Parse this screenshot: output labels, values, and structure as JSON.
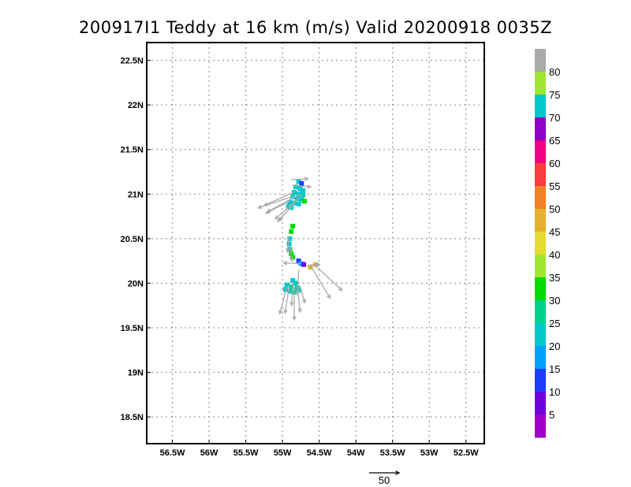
{
  "chart_data": {
    "type": "scatter",
    "title": "200917I1 Teddy at 16 km (m/s) Valid 20200918 0035Z",
    "xlim": [
      -56.85,
      -52.25
    ],
    "ylim": [
      18.2,
      22.7
    ],
    "x_ticks": [
      {
        "value": -56.5,
        "label": "56.5W"
      },
      {
        "value": -56.0,
        "label": "56W"
      },
      {
        "value": -55.5,
        "label": "55.5W"
      },
      {
        "value": -55.0,
        "label": "55W"
      },
      {
        "value": -54.5,
        "label": "54.5W"
      },
      {
        "value": -54.0,
        "label": "54W"
      },
      {
        "value": -53.5,
        "label": "53.5W"
      },
      {
        "value": -53.0,
        "label": "53W"
      },
      {
        "value": -52.5,
        "label": "52.5W"
      }
    ],
    "y_ticks": [
      {
        "value": 18.5,
        "label": "18.5N"
      },
      {
        "value": 19.0,
        "label": "19N"
      },
      {
        "value": 19.5,
        "label": "19.5N"
      },
      {
        "value": 20.0,
        "label": "20N"
      },
      {
        "value": 20.5,
        "label": "20.5N"
      },
      {
        "value": 21.0,
        "label": "21N"
      },
      {
        "value": 21.5,
        "label": "21.5N"
      },
      {
        "value": 22.0,
        "label": "22N"
      },
      {
        "value": 22.5,
        "label": "22.5N"
      }
    ],
    "grid": true,
    "colorbar": {
      "labels": [
        "5",
        "10",
        "15",
        "20",
        "25",
        "30",
        "35",
        "40",
        "45",
        "50",
        "55",
        "60",
        "65",
        "70",
        "75",
        "80"
      ],
      "colors": [
        "#a000c8",
        "#6e00dc",
        "#1e3cff",
        "#00a0ff",
        "#00c8c8",
        "#00d28c",
        "#00dc00",
        "#a0e632",
        "#e6dc32",
        "#e6af2d",
        "#f08228",
        "#fa3c3c",
        "#f00082",
        "#8c00c8",
        "#00c8c8",
        "#a0e632",
        "#aaaaaa"
      ]
    },
    "points": [
      {
        "lon": -54.78,
        "lat": 21.14,
        "v": 22
      },
      {
        "lon": -54.74,
        "lat": 21.12,
        "v": 14
      },
      {
        "lon": -54.82,
        "lat": 21.08,
        "v": 22
      },
      {
        "lon": -54.76,
        "lat": 21.06,
        "v": 21
      },
      {
        "lon": -54.72,
        "lat": 21.04,
        "v": 23
      },
      {
        "lon": -54.84,
        "lat": 21.02,
        "v": 24
      },
      {
        "lon": -54.78,
        "lat": 21.0,
        "v": 22
      },
      {
        "lon": -54.72,
        "lat": 20.99,
        "v": 21
      },
      {
        "lon": -54.86,
        "lat": 20.97,
        "v": 22
      },
      {
        "lon": -54.8,
        "lat": 20.95,
        "v": 24
      },
      {
        "lon": -54.74,
        "lat": 20.94,
        "v": 20
      },
      {
        "lon": -54.7,
        "lat": 20.92,
        "v": 32
      },
      {
        "lon": -54.9,
        "lat": 20.91,
        "v": 23
      },
      {
        "lon": -54.84,
        "lat": 20.9,
        "v": 21
      },
      {
        "lon": -54.78,
        "lat": 20.89,
        "v": 22
      },
      {
        "lon": -54.92,
        "lat": 20.86,
        "v": 22
      },
      {
        "lon": -54.88,
        "lat": 20.85,
        "v": 24
      },
      {
        "lon": -54.86,
        "lat": 20.64,
        "v": 32
      },
      {
        "lon": -54.88,
        "lat": 20.58,
        "v": 33
      },
      {
        "lon": -54.9,
        "lat": 20.5,
        "v": 24
      },
      {
        "lon": -54.91,
        "lat": 20.44,
        "v": 22
      },
      {
        "lon": -54.9,
        "lat": 20.38,
        "v": 27
      },
      {
        "lon": -54.88,
        "lat": 20.33,
        "v": 32
      },
      {
        "lon": -54.86,
        "lat": 20.29,
        "v": 34
      },
      {
        "lon": -54.78,
        "lat": 20.25,
        "v": 12
      },
      {
        "lon": -54.75,
        "lat": 20.22,
        "v": 16
      },
      {
        "lon": -54.71,
        "lat": 20.21,
        "v": 9
      },
      {
        "lon": -54.62,
        "lat": 20.18,
        "v": 48
      },
      {
        "lon": -54.55,
        "lat": 20.21,
        "v": 47
      },
      {
        "lon": -54.86,
        "lat": 20.03,
        "v": 22
      },
      {
        "lon": -54.82,
        "lat": 20.0,
        "v": 24
      },
      {
        "lon": -54.94,
        "lat": 19.98,
        "v": 23
      },
      {
        "lon": -54.88,
        "lat": 19.96,
        "v": 25
      },
      {
        "lon": -54.8,
        "lat": 19.95,
        "v": 21
      },
      {
        "lon": -54.96,
        "lat": 19.93,
        "v": 21
      },
      {
        "lon": -54.9,
        "lat": 19.91,
        "v": 22
      },
      {
        "lon": -54.84,
        "lat": 19.9,
        "v": 26
      },
      {
        "lon": -54.78,
        "lat": 19.92,
        "v": 20
      }
    ],
    "vectors": [
      {
        "lon": -54.88,
        "lat": 21.16,
        "u": 28,
        "v": 2
      },
      {
        "lon": -54.86,
        "lat": 21.1,
        "u": 30,
        "v": -3
      },
      {
        "lon": -54.8,
        "lat": 21.04,
        "u": -55,
        "v": -25
      },
      {
        "lon": -54.76,
        "lat": 21.0,
        "u": -55,
        "v": -30
      },
      {
        "lon": -54.84,
        "lat": 20.98,
        "u": -60,
        "v": -20
      },
      {
        "lon": -54.8,
        "lat": 20.94,
        "u": -30,
        "v": -35
      },
      {
        "lon": -54.9,
        "lat": 20.92,
        "u": -40,
        "v": -20
      },
      {
        "lon": -54.86,
        "lat": 20.88,
        "u": -25,
        "v": -28
      },
      {
        "lon": -54.73,
        "lat": 20.99,
        "u": -45,
        "v": -40
      },
      {
        "lon": -54.91,
        "lat": 20.52,
        "u": -3,
        "v": -25
      },
      {
        "lon": -54.89,
        "lat": 20.4,
        "u": 2,
        "v": -22
      },
      {
        "lon": -54.74,
        "lat": 20.22,
        "u": -30,
        "v": 1
      },
      {
        "lon": -54.66,
        "lat": 20.2,
        "u": 20,
        "v": 2
      },
      {
        "lon": -54.62,
        "lat": 20.2,
        "u": 33,
        "v": -55
      },
      {
        "lon": -54.58,
        "lat": 20.22,
        "u": 48,
        "v": -45
      },
      {
        "lon": -54.86,
        "lat": 20.02,
        "u": -2,
        "v": -40
      },
      {
        "lon": -54.9,
        "lat": 20.0,
        "u": -8,
        "v": -50
      },
      {
        "lon": -54.8,
        "lat": 19.98,
        "u": 5,
        "v": -45
      },
      {
        "lon": -54.94,
        "lat": 19.96,
        "u": -12,
        "v": -45
      },
      {
        "lon": -54.84,
        "lat": 19.96,
        "u": 0,
        "v": -55
      },
      {
        "lon": -54.76,
        "lat": 19.97,
        "u": 8,
        "v": -28
      },
      {
        "lon": -54.78,
        "lat": 20.15,
        "u": -2,
        "v": -40
      }
    ],
    "reference_vector": {
      "value": 50,
      "label": "50"
    }
  }
}
